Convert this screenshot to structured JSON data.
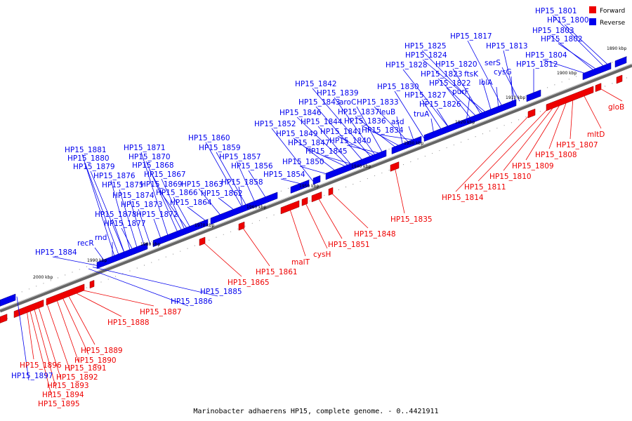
{
  "legend": [
    {
      "label": "Forward",
      "color": "#ee0000"
    },
    {
      "label": "Reverse",
      "color": "#0000ee"
    }
  ],
  "caption": "Marinobacter adhaerens HP15, complete genome. - 0..4421911",
  "colors": {
    "forward": "#ee0000",
    "reverse": "#0000ee",
    "backbone": "#666666"
  },
  "genes": [
    {
      "name": "HP15_1801",
      "strand": "reverse"
    },
    {
      "name": "HP15_1800",
      "strand": "reverse"
    },
    {
      "name": "HP15_1803",
      "strand": "reverse"
    },
    {
      "name": "HP15_1802",
      "strand": "reverse"
    },
    {
      "name": "HP15_1804",
      "strand": "reverse"
    },
    {
      "name": "HP15_1812",
      "strand": "reverse"
    },
    {
      "name": "HP15_1817",
      "strand": "reverse"
    },
    {
      "name": "HP15_1813",
      "strand": "reverse"
    },
    {
      "name": "HP15_1825",
      "strand": "reverse"
    },
    {
      "name": "HP15_1824",
      "strand": "reverse"
    },
    {
      "name": "HP15_1828",
      "strand": "reverse"
    },
    {
      "name": "HP15_1820",
      "strand": "reverse"
    },
    {
      "name": "HP15_1823",
      "strand": "reverse"
    },
    {
      "name": "HP15_1822",
      "strand": "reverse"
    },
    {
      "name": "serS",
      "strand": "reverse"
    },
    {
      "name": "cysG",
      "strand": "reverse"
    },
    {
      "name": "ftsK",
      "strand": "reverse"
    },
    {
      "name": "lolA",
      "strand": "reverse"
    },
    {
      "name": "purF",
      "strand": "reverse"
    },
    {
      "name": "HP15_1830",
      "strand": "reverse"
    },
    {
      "name": "HP15_1827",
      "strand": "reverse"
    },
    {
      "name": "HP15_1826",
      "strand": "reverse"
    },
    {
      "name": "truA",
      "strand": "reverse"
    },
    {
      "name": "HP15_1842",
      "strand": "reverse"
    },
    {
      "name": "HP15_1839",
      "strand": "reverse"
    },
    {
      "name": "HP15_1843",
      "strand": "reverse"
    },
    {
      "name": "aroC",
      "strand": "reverse"
    },
    {
      "name": "HP15_1833",
      "strand": "reverse"
    },
    {
      "name": "HP15_1846",
      "strand": "reverse"
    },
    {
      "name": "HP15_1837",
      "strand": "reverse"
    },
    {
      "name": "leuB",
      "strand": "reverse"
    },
    {
      "name": "HP15_1844",
      "strand": "reverse"
    },
    {
      "name": "HP15_1836",
      "strand": "reverse"
    },
    {
      "name": "asd",
      "strand": "reverse"
    },
    {
      "name": "HP15_1852",
      "strand": "reverse"
    },
    {
      "name": "HP15_1841",
      "strand": "reverse"
    },
    {
      "name": "HP15_1834",
      "strand": "reverse"
    },
    {
      "name": "HP15_1849",
      "strand": "reverse"
    },
    {
      "name": "HP15_1847",
      "strand": "reverse"
    },
    {
      "name": "HP15_1840",
      "strand": "reverse"
    },
    {
      "name": "HP15_1845",
      "strand": "reverse"
    },
    {
      "name": "HP15_1860",
      "strand": "reverse"
    },
    {
      "name": "HP15_1859",
      "strand": "reverse"
    },
    {
      "name": "HP15_1857",
      "strand": "reverse"
    },
    {
      "name": "HP15_1850",
      "strand": "reverse"
    },
    {
      "name": "HP15_1856",
      "strand": "reverse"
    },
    {
      "name": "HP15_1854",
      "strand": "reverse"
    },
    {
      "name": "HP15_1858",
      "strand": "reverse"
    },
    {
      "name": "HP15_1863",
      "strand": "reverse"
    },
    {
      "name": "HP15_1862",
      "strand": "reverse"
    },
    {
      "name": "HP15_1864",
      "strand": "reverse"
    },
    {
      "name": "HP15_1881",
      "strand": "reverse"
    },
    {
      "name": "HP15_1871",
      "strand": "reverse"
    },
    {
      "name": "HP15_1880",
      "strand": "reverse"
    },
    {
      "name": "HP15_1870",
      "strand": "reverse"
    },
    {
      "name": "HP15_1879",
      "strand": "reverse"
    },
    {
      "name": "HP15_1868",
      "strand": "reverse"
    },
    {
      "name": "HP15_1876",
      "strand": "reverse"
    },
    {
      "name": "HP15_1867",
      "strand": "reverse"
    },
    {
      "name": "HP15_1875",
      "strand": "reverse"
    },
    {
      "name": "HP15_1869",
      "strand": "reverse"
    },
    {
      "name": "HP15_1874",
      "strand": "reverse"
    },
    {
      "name": "HP15_1866",
      "strand": "reverse"
    },
    {
      "name": "HP15_1873",
      "strand": "reverse"
    },
    {
      "name": "HP15_1878",
      "strand": "reverse"
    },
    {
      "name": "HP15_1872",
      "strand": "reverse"
    },
    {
      "name": "HP15_1877",
      "strand": "reverse"
    },
    {
      "name": "rnd",
      "strand": "reverse"
    },
    {
      "name": "recR",
      "strand": "reverse"
    },
    {
      "name": "HP15_1884",
      "strand": "reverse"
    },
    {
      "name": "HP15_1885",
      "strand": "reverse"
    },
    {
      "name": "HP15_1886",
      "strand": "reverse"
    },
    {
      "name": "HP15_1897",
      "strand": "reverse"
    },
    {
      "name": "gloB",
      "strand": "forward"
    },
    {
      "name": "mltD",
      "strand": "forward"
    },
    {
      "name": "HP15_1807",
      "strand": "forward"
    },
    {
      "name": "HP15_1808",
      "strand": "forward"
    },
    {
      "name": "HP15_1809",
      "strand": "forward"
    },
    {
      "name": "HP15_1810",
      "strand": "forward"
    },
    {
      "name": "HP15_1811",
      "strand": "forward"
    },
    {
      "name": "HP15_1814",
      "strand": "forward"
    },
    {
      "name": "HP15_1835",
      "strand": "forward"
    },
    {
      "name": "HP15_1848",
      "strand": "forward"
    },
    {
      "name": "HP15_1851",
      "strand": "forward"
    },
    {
      "name": "cysH",
      "strand": "forward"
    },
    {
      "name": "malT",
      "strand": "forward"
    },
    {
      "name": "HP15_1861",
      "strand": "forward"
    },
    {
      "name": "HP15_1865",
      "strand": "forward"
    },
    {
      "name": "HP15_1887",
      "strand": "forward"
    },
    {
      "name": "HP15_1888",
      "strand": "forward"
    },
    {
      "name": "HP15_1889",
      "strand": "forward"
    },
    {
      "name": "HP15_1890",
      "strand": "forward"
    },
    {
      "name": "HP15_1891",
      "strand": "forward"
    },
    {
      "name": "HP15_1892",
      "strand": "forward"
    },
    {
      "name": "HP15_1896",
      "strand": "forward"
    },
    {
      "name": "HP15_1893",
      "strand": "forward"
    },
    {
      "name": "HP15_1894",
      "strand": "forward"
    },
    {
      "name": "HP15_1895",
      "strand": "forward"
    }
  ],
  "ticks": [
    "1890 kbp",
    "1900 kbp",
    "1910 kbp",
    "1920 kbp",
    "1930 kbp",
    "1940 kbp",
    "1950 kbp",
    "1960 kbp",
    "1970 kbp",
    "1980 kbp",
    "1990 kbp",
    "2000 kbp"
  ]
}
